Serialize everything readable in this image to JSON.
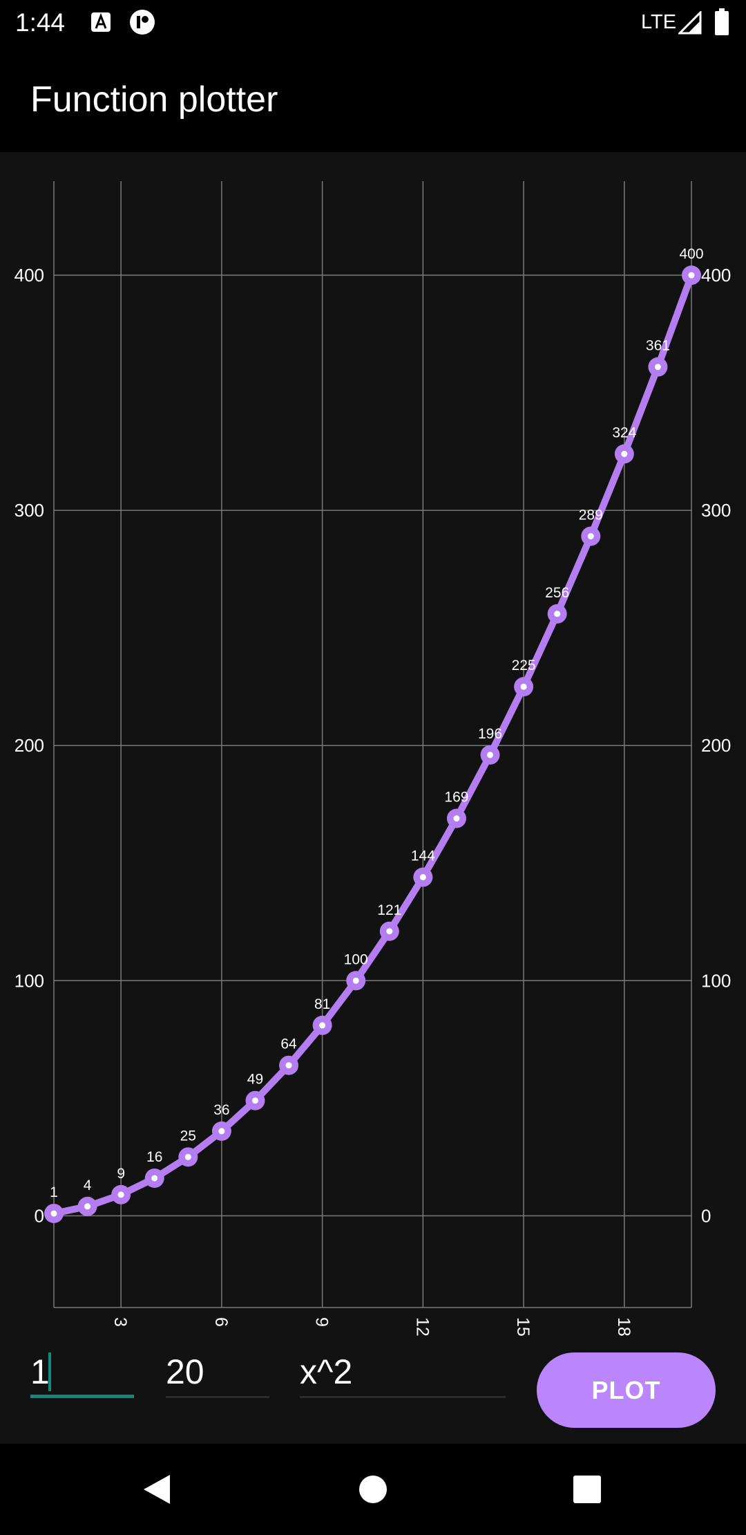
{
  "status_bar": {
    "time": "1:44",
    "network": "LTE",
    "icons": [
      "keyboard-notification-icon",
      "app-notification-icon",
      "signal-icon",
      "battery-icon"
    ]
  },
  "app_bar": {
    "title": "Function plotter"
  },
  "inputs": {
    "from_value": "1",
    "to_value": "20",
    "expression_value": "x^2"
  },
  "plot_button": {
    "label": "PLOT"
  },
  "nav_bar": {
    "icons": [
      "back-icon",
      "home-icon",
      "recents-icon"
    ]
  },
  "colors": {
    "accent": "#bb86fc",
    "line": "#b47ef1",
    "focus": "#0f8a78",
    "background": "#121212",
    "grid": "#7a7a7a"
  },
  "chart_data": {
    "type": "line",
    "x": [
      1,
      2,
      3,
      4,
      5,
      6,
      7,
      8,
      9,
      10,
      11,
      12,
      13,
      14,
      15,
      16,
      17,
      18,
      19,
      20
    ],
    "series": [
      {
        "values": [
          1,
          4,
          9,
          16,
          25,
          36,
          49,
          64,
          81,
          100,
          121,
          144,
          169,
          196,
          225,
          256,
          289,
          324,
          361,
          400
        ]
      }
    ],
    "data_labels": [
      "1",
      "4",
      "9",
      "16",
      "25",
      "36",
      "49",
      "64",
      "81",
      "100",
      "121",
      "144",
      "169",
      "196",
      "225",
      "256",
      "289",
      "324",
      "361",
      "400"
    ],
    "x_ticks": [
      3,
      6,
      9,
      12,
      15,
      18
    ],
    "x_tick_labels": [
      "3",
      "6",
      "9",
      "12",
      "15",
      "18"
    ],
    "y_ticks": [
      0,
      100,
      200,
      300,
      400
    ],
    "y_tick_labels": [
      "0",
      "100",
      "200",
      "300",
      "400"
    ],
    "xlim": [
      1,
      20
    ],
    "ylim": [
      -39,
      440
    ],
    "grid": true,
    "legend": "none",
    "title": "",
    "xlabel": "",
    "ylabel": ""
  }
}
